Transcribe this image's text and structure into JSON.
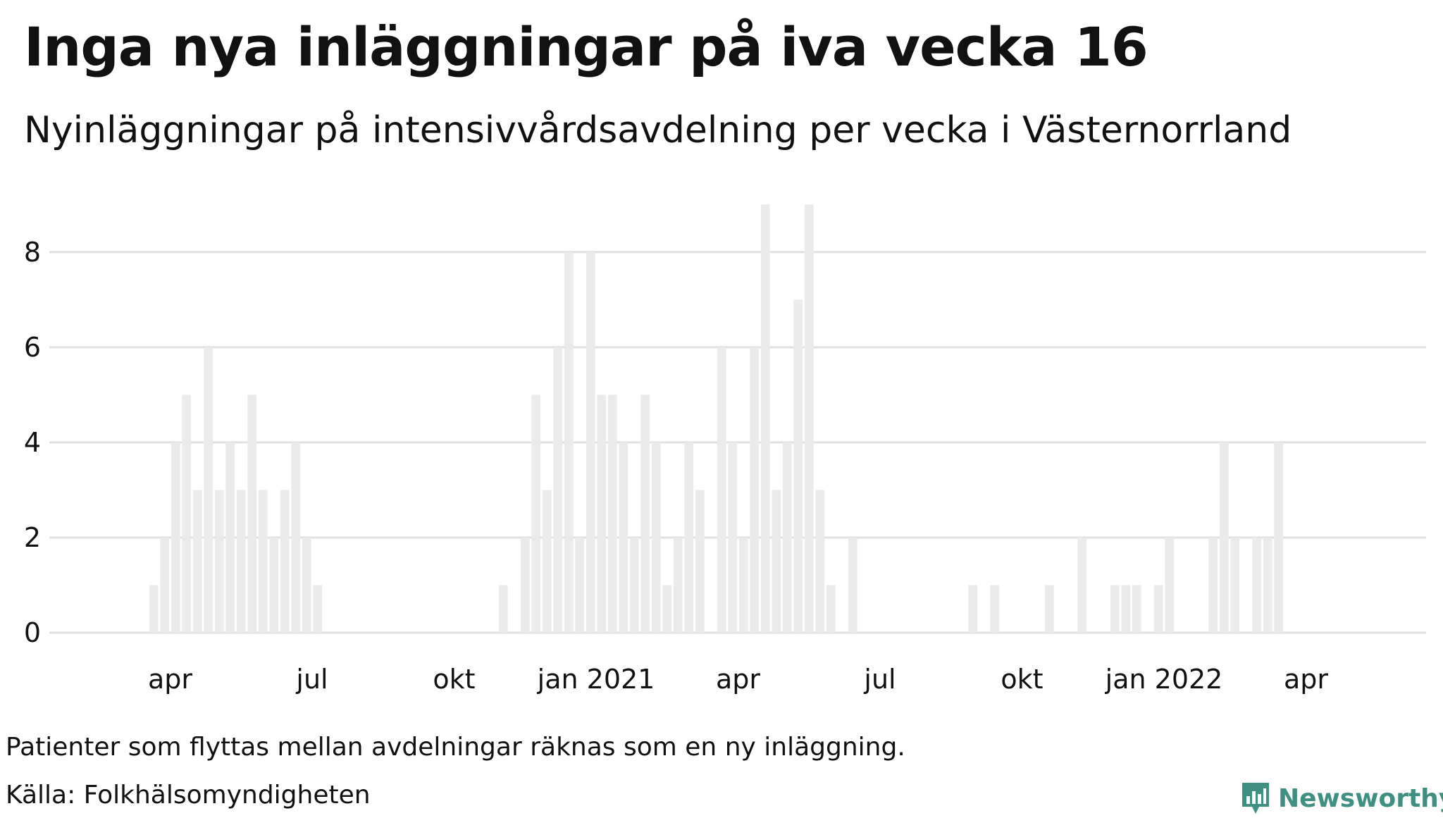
{
  "header": {
    "title": "Inga nya inläggningar på iva vecka 16",
    "subtitle": "Nyinläggningar på intensivvårdsavdelning per vecka i Västernorrland"
  },
  "footer": {
    "note": "Patienter som flyttas mellan avdelningar räknas som en ny inläggning.",
    "source": "Källa: Folkhälsomyndigheten",
    "brand": "Newsworthy"
  },
  "colors": {
    "bar": "#ebebeb",
    "grid": "#e0e0e0",
    "text": "#111111",
    "brand": "#3f8f82"
  },
  "chart_data": {
    "type": "bar",
    "title": "Inga nya inläggningar på iva vecka 16",
    "subtitle": "Nyinläggningar på intensivvårdsavdelning per vecka i Västernorrland",
    "xlabel": "",
    "ylabel": "",
    "x_unit": "week index (week of 2020-03-09 = 0)",
    "x_range": [
      -11.5,
      116.5
    ],
    "ylim": [
      0,
      9.3
    ],
    "y_ticks": [
      0,
      2,
      4,
      6,
      8
    ],
    "x_ticks": [
      {
        "x": 1.5,
        "label": "apr"
      },
      {
        "x": 14.5,
        "label": "jul"
      },
      {
        "x": 27.5,
        "label": "okt"
      },
      {
        "x": 40.5,
        "label": "jan 2021"
      },
      {
        "x": 53.5,
        "label": "apr"
      },
      {
        "x": 66.5,
        "label": "jul"
      },
      {
        "x": 79.5,
        "label": "okt"
      },
      {
        "x": 92.5,
        "label": "jan 2022"
      },
      {
        "x": 105.5,
        "label": "apr"
      }
    ],
    "grid": true,
    "series": [
      {
        "name": "Nyinläggningar på iva",
        "values": [
          1,
          2,
          4,
          5,
          3,
          6,
          3,
          4,
          3,
          5,
          3,
          2,
          3,
          4,
          2,
          1,
          0,
          0,
          0,
          0,
          0,
          0,
          0,
          0,
          0,
          0,
          0,
          0,
          0,
          0,
          0,
          0,
          1,
          0,
          2,
          5,
          3,
          6,
          8,
          2,
          8,
          5,
          5,
          4,
          2,
          5,
          4,
          1,
          2,
          4,
          3,
          0,
          6,
          4,
          2,
          6,
          9,
          3,
          4,
          7,
          9,
          3,
          1,
          0,
          2,
          0,
          0,
          0,
          0,
          0,
          0,
          0,
          0,
          0,
          0,
          1,
          0,
          1,
          0,
          0,
          0,
          0,
          1,
          0,
          0,
          2,
          0,
          0,
          1,
          1,
          1,
          0,
          1,
          2,
          0,
          0,
          0,
          2,
          4,
          2,
          0,
          2,
          2,
          4,
          0,
          0,
          0,
          0,
          0,
          0,
          0,
          0,
          0
        ]
      }
    ]
  }
}
